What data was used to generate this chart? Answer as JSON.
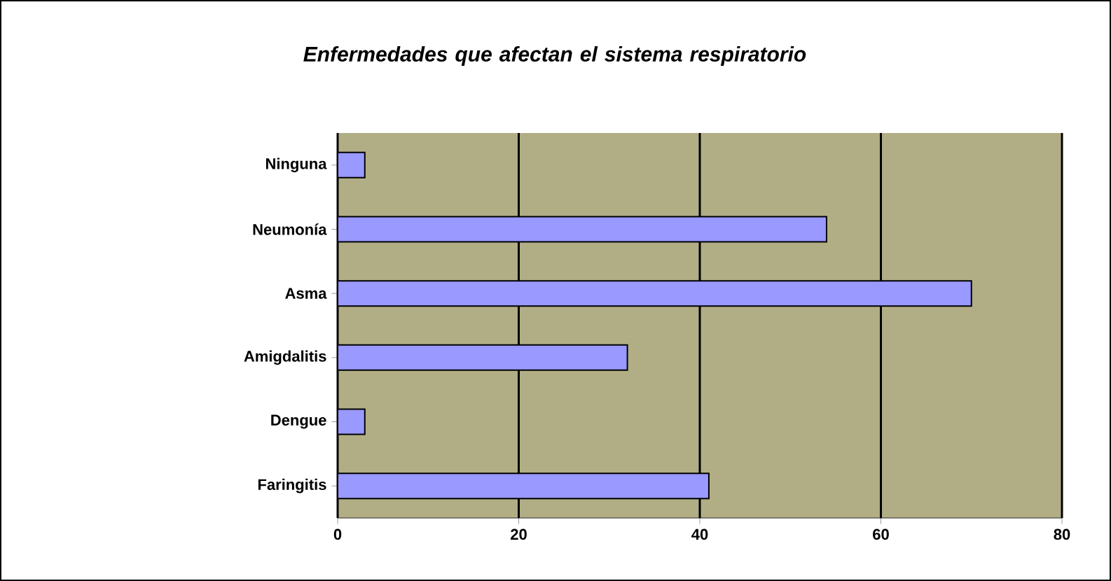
{
  "chart_data": {
    "type": "bar",
    "orientation": "horizontal",
    "title": "Enfermedades que afectan el sistema respiratorio",
    "categories": [
      "Ninguna",
      "Neumonía",
      "Asma",
      "Amigdalitis",
      "Dengue",
      "Faringitis"
    ],
    "values": [
      3,
      54,
      70,
      32,
      3,
      41
    ],
    "color": "#9999ff",
    "xlim": [
      0,
      80
    ],
    "xticks": [
      0,
      20,
      40,
      60,
      80
    ],
    "grid": "x"
  }
}
